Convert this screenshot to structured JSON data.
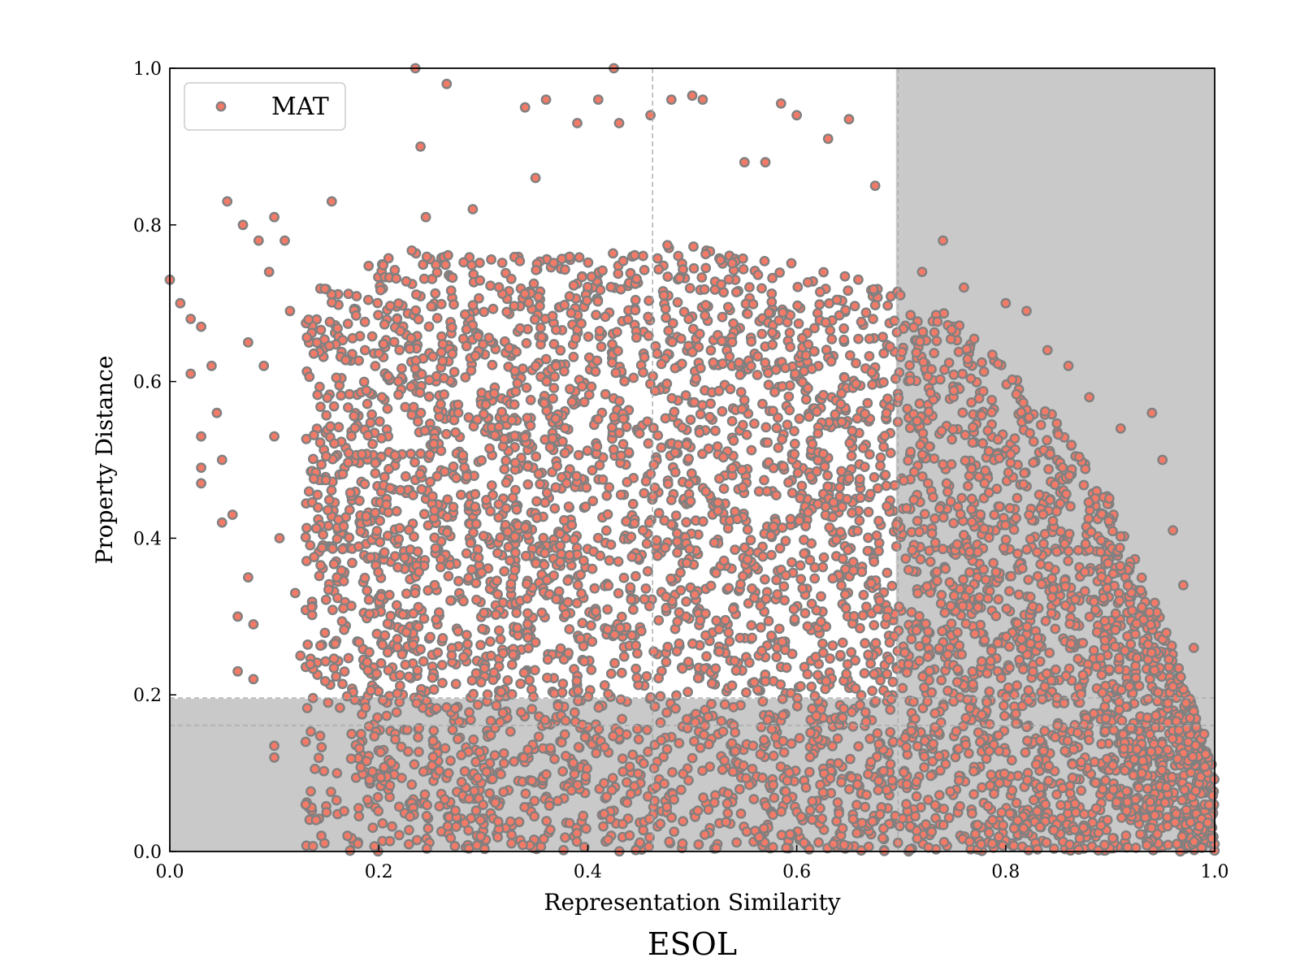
{
  "chart_data": {
    "type": "scatter",
    "title": "ESOL",
    "xlabel": "Representation Similarity",
    "ylabel": "Property Distance",
    "xlim": [
      0.0,
      1.0
    ],
    "ylim": [
      0.0,
      1.0
    ],
    "x_ticks": [
      "0.0",
      "0.2",
      "0.4",
      "0.6",
      "0.8",
      "1.0"
    ],
    "y_ticks": [
      "0.0",
      "0.2",
      "0.4",
      "0.6",
      "0.8",
      "1.0"
    ],
    "grid": false,
    "legend": {
      "placement": "top-left",
      "entries": [
        "MAT"
      ]
    },
    "series": [
      {
        "name": "MAT",
        "marker_fill": "#f47a68",
        "marker_edge": "#808080",
        "points": [
          [
            0.0,
            0.73
          ],
          [
            0.01,
            0.7
          ],
          [
            0.02,
            0.68
          ],
          [
            0.02,
            0.61
          ],
          [
            0.03,
            0.67
          ],
          [
            0.03,
            0.53
          ],
          [
            0.03,
            0.49
          ],
          [
            0.03,
            0.47
          ],
          [
            0.04,
            0.62
          ],
          [
            0.045,
            0.56
          ],
          [
            0.05,
            0.5
          ],
          [
            0.05,
            0.42
          ],
          [
            0.055,
            0.83
          ],
          [
            0.06,
            0.43
          ],
          [
            0.065,
            0.3
          ],
          [
            0.065,
            0.23
          ],
          [
            0.07,
            0.8
          ],
          [
            0.075,
            0.35
          ],
          [
            0.075,
            0.65
          ],
          [
            0.08,
            0.22
          ],
          [
            0.08,
            0.29
          ],
          [
            0.085,
            0.78
          ],
          [
            0.09,
            0.62
          ],
          [
            0.095,
            0.74
          ],
          [
            0.1,
            0.81
          ],
          [
            0.1,
            0.53
          ],
          [
            0.1,
            0.12
          ],
          [
            0.1,
            0.135
          ],
          [
            0.105,
            0.4
          ],
          [
            0.11,
            0.78
          ],
          [
            0.115,
            0.69
          ],
          [
            0.12,
            0.33
          ],
          [
            0.125,
            0.25
          ],
          [
            0.13,
            0.14
          ],
          [
            0.13,
            0.06
          ],
          [
            0.14,
            0.04
          ],
          [
            0.145,
            0.02
          ],
          [
            0.15,
            0.05
          ],
          [
            0.155,
            0.83
          ],
          [
            0.16,
            0.1
          ],
          [
            0.17,
            0.02
          ],
          [
            0.18,
            0.01
          ],
          [
            0.235,
            1.0
          ],
          [
            0.24,
            0.9
          ],
          [
            0.245,
            0.81
          ],
          [
            0.265,
            0.98
          ],
          [
            0.29,
            0.82
          ],
          [
            0.34,
            0.95
          ],
          [
            0.35,
            0.86
          ],
          [
            0.36,
            0.96
          ],
          [
            0.39,
            0.93
          ],
          [
            0.41,
            0.96
          ],
          [
            0.425,
            1.0
          ],
          [
            0.43,
            0.93
          ],
          [
            0.46,
            0.94
          ],
          [
            0.48,
            0.96
          ],
          [
            0.5,
            0.965
          ],
          [
            0.51,
            0.96
          ],
          [
            0.55,
            0.88
          ],
          [
            0.57,
            0.88
          ],
          [
            0.585,
            0.955
          ],
          [
            0.6,
            0.94
          ],
          [
            0.63,
            0.91
          ],
          [
            0.65,
            0.935
          ],
          [
            0.675,
            0.85
          ],
          [
            0.72,
            0.74
          ],
          [
            0.74,
            0.78
          ],
          [
            0.76,
            0.72
          ],
          [
            0.8,
            0.7
          ],
          [
            0.82,
            0.69
          ],
          [
            0.84,
            0.64
          ],
          [
            0.86,
            0.62
          ],
          [
            0.88,
            0.58
          ],
          [
            0.91,
            0.54
          ],
          [
            0.94,
            0.56
          ],
          [
            0.95,
            0.5
          ],
          [
            0.96,
            0.41
          ],
          [
            0.97,
            0.34
          ],
          [
            0.98,
            0.26
          ],
          [
            0.99,
            0.15
          ]
        ]
      }
    ],
    "shaded_regions": [
      {
        "x": [
          0.0,
          1.0
        ],
        "y": [
          0.0,
          0.195
        ]
      },
      {
        "x": [
          0.695,
          1.0
        ],
        "y": [
          0.0,
          1.0
        ]
      }
    ],
    "reference_lines": {
      "vertical": [
        0.462,
        0.697
      ],
      "horizontal": [
        0.196,
        0.161
      ]
    }
  },
  "colors": {
    "shade": "#c9c9c9",
    "marker_fill": "#f47a68",
    "marker_edge": "#808080",
    "ref_line": "#aaaaaa"
  }
}
